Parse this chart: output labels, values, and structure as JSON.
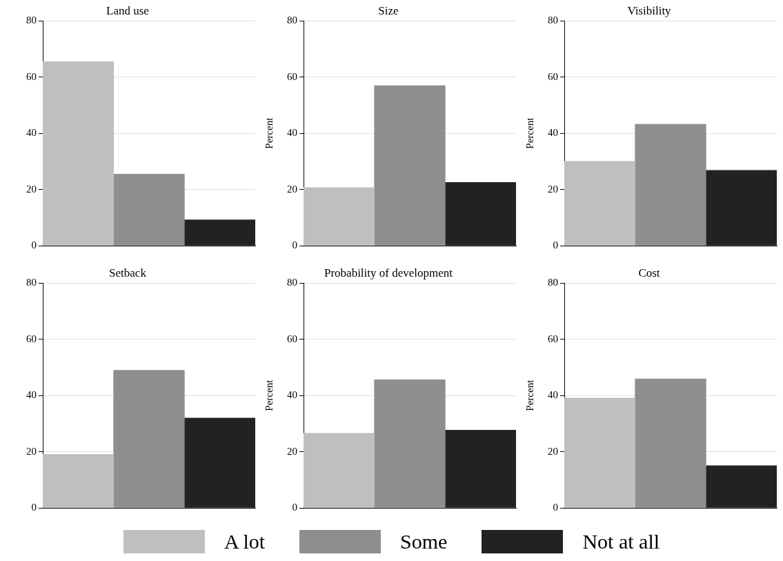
{
  "chart_data": [
    {
      "type": "bar",
      "title": "Land use",
      "categories": [
        null
      ],
      "ylim": [
        0,
        80
      ],
      "yticks": [
        0,
        20,
        40,
        60,
        80
      ],
      "grid": "y",
      "legend": "bottom",
      "series": [
        {
          "name": "A lot",
          "color": "#bfbfbf",
          "values": [
            65.5
          ]
        },
        {
          "name": "Some",
          "color": "#8e8e8e",
          "values": [
            25.5
          ]
        },
        {
          "name": "Not at all",
          "color": "#222222",
          "values": [
            9.2
          ]
        }
      ]
    },
    {
      "type": "bar",
      "title": "Size",
      "ylabel": "Percent",
      "categories": [
        null
      ],
      "ylim": [
        0,
        80
      ],
      "yticks": [
        0,
        20,
        40,
        60,
        80
      ],
      "grid": "y",
      "series": [
        {
          "color": "#bfbfbf",
          "values": [
            20.7
          ]
        },
        {
          "color": "#8e8e8e",
          "values": [
            57
          ]
        },
        {
          "color": "#222222",
          "values": [
            22.5
          ]
        }
      ]
    },
    {
      "type": "bar",
      "title": "Visibility",
      "ylabel": "Percent",
      "categories": [
        null
      ],
      "ylim": [
        0,
        80
      ],
      "yticks": [
        0,
        20,
        40,
        60,
        80
      ],
      "grid": "y",
      "series": [
        {
          "color": "#bfbfbf",
          "values": [
            30
          ]
        },
        {
          "color": "#8e8e8e",
          "values": [
            43.2
          ]
        },
        {
          "color": "#222222",
          "values": [
            26.8
          ]
        }
      ]
    },
    {
      "type": "bar",
      "title": "Setback",
      "categories": [
        null
      ],
      "ylim": [
        0,
        80
      ],
      "yticks": [
        0,
        20,
        40,
        60,
        80
      ],
      "grid": "y",
      "series": [
        {
          "color": "#bfbfbf",
          "values": [
            19
          ]
        },
        {
          "color": "#8e8e8e",
          "values": [
            49
          ]
        },
        {
          "color": "#222222",
          "values": [
            32
          ]
        }
      ]
    },
    {
      "type": "bar",
      "title": "Probability of development",
      "ylabel": "Percent",
      "categories": [
        null
      ],
      "ylim": [
        0,
        80
      ],
      "yticks": [
        0,
        20,
        40,
        60,
        80
      ],
      "grid": "y",
      "series": [
        {
          "color": "#bfbfbf",
          "values": [
            26.6
          ]
        },
        {
          "color": "#8e8e8e",
          "values": [
            45.6
          ]
        },
        {
          "color": "#222222",
          "values": [
            27.7
          ]
        }
      ]
    },
    {
      "type": "bar",
      "title": "Cost",
      "ylabel": "Percent",
      "categories": [
        null
      ],
      "ylim": [
        0,
        80
      ],
      "yticks": [
        0,
        20,
        40,
        60,
        80
      ],
      "grid": "y",
      "series": [
        {
          "color": "#bfbfbf",
          "values": [
            39.1
          ]
        },
        {
          "color": "#8e8e8e",
          "values": [
            45.9
          ]
        },
        {
          "color": "#222222",
          "values": [
            15
          ]
        }
      ]
    }
  ]
}
